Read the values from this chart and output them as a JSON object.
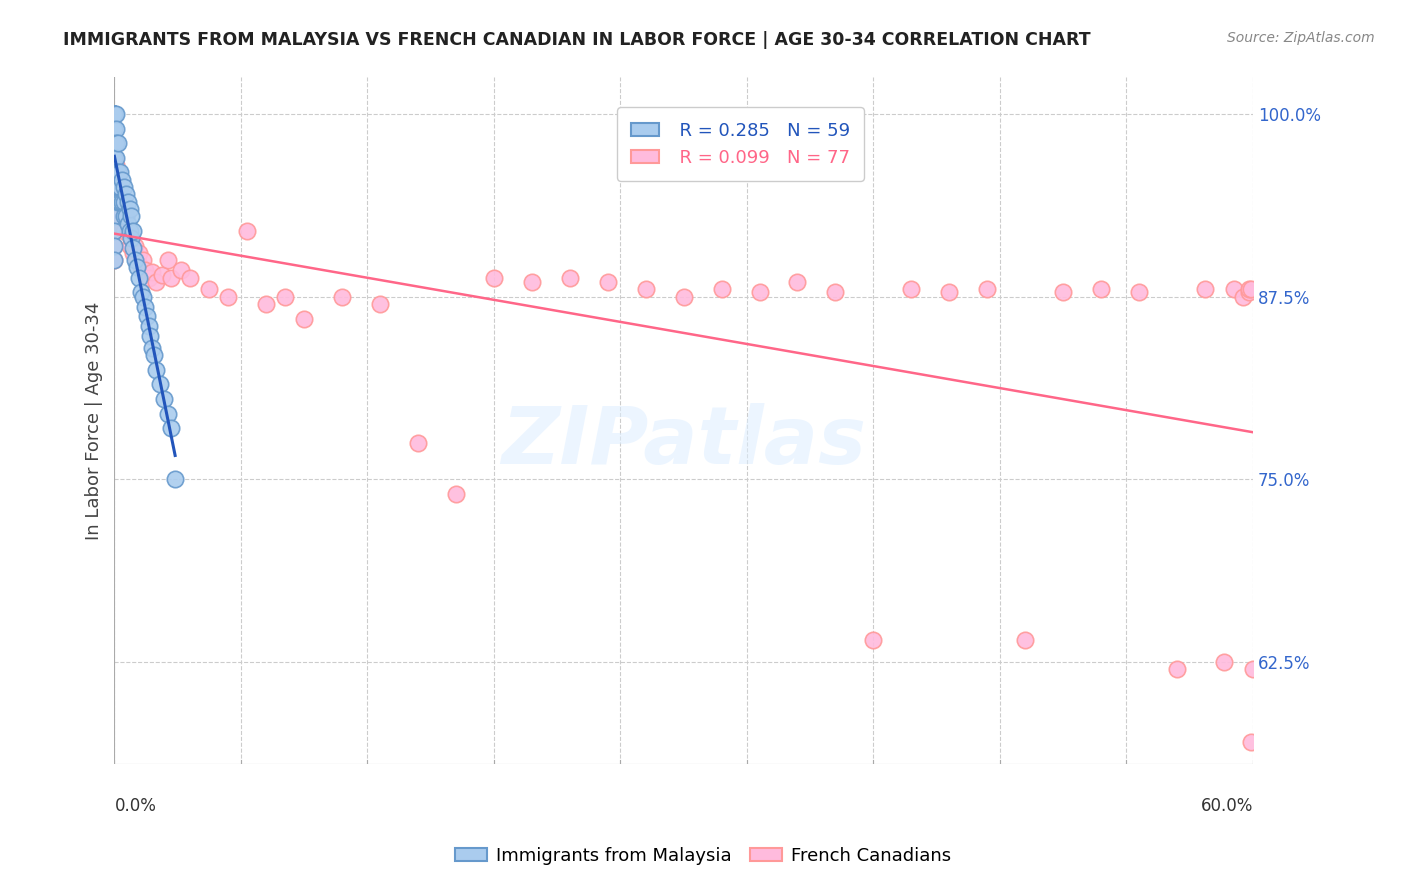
{
  "title": "IMMIGRANTS FROM MALAYSIA VS FRENCH CANADIAN IN LABOR FORCE | AGE 30-34 CORRELATION CHART",
  "source": "Source: ZipAtlas.com",
  "ylabel": "In Labor Force | Age 30-34",
  "right_yticks": [
    1.0,
    0.875,
    0.75,
    0.625
  ],
  "right_yticklabels": [
    "100.0%",
    "87.5%",
    "75.0%",
    "62.5%"
  ],
  "legend_blue_r": "R = 0.285",
  "legend_blue_n": "N = 59",
  "legend_pink_r": "R = 0.099",
  "legend_pink_n": "N = 77",
  "legend_blue_label": "Immigrants from Malaysia",
  "legend_pink_label": "French Canadians",
  "blue_edge_color": "#6699CC",
  "blue_face_color": "#AACCEE",
  "pink_edge_color": "#FF9999",
  "pink_face_color": "#FFBBDD",
  "trend_blue_color": "#2255BB",
  "trend_pink_color": "#FF6688",
  "xlim": [
    0.0,
    0.6
  ],
  "ylim": [
    0.555,
    1.025
  ],
  "watermark": "ZIPatlas",
  "background_color": "#FFFFFF",
  "grid_color": "#CCCCCC",
  "blue_scatter_x": [
    0.0,
    0.0,
    0.0,
    0.0,
    0.0,
    0.0,
    0.0,
    0.0,
    0.0,
    0.0,
    0.0,
    0.0,
    0.0,
    0.0,
    0.0,
    0.001,
    0.001,
    0.001,
    0.001,
    0.001,
    0.002,
    0.002,
    0.002,
    0.002,
    0.003,
    0.003,
    0.003,
    0.004,
    0.004,
    0.005,
    0.005,
    0.005,
    0.006,
    0.006,
    0.007,
    0.007,
    0.008,
    0.008,
    0.009,
    0.009,
    0.01,
    0.01,
    0.011,
    0.012,
    0.013,
    0.014,
    0.015,
    0.016,
    0.017,
    0.018,
    0.019,
    0.02,
    0.021,
    0.022,
    0.024,
    0.026,
    0.028,
    0.03,
    0.032
  ],
  "blue_scatter_y": [
    1.0,
    1.0,
    1.0,
    1.0,
    1.0,
    0.99,
    0.98,
    0.97,
    0.96,
    0.95,
    0.94,
    0.93,
    0.92,
    0.91,
    0.9,
    1.0,
    0.99,
    0.98,
    0.97,
    0.96,
    0.98,
    0.96,
    0.95,
    0.94,
    0.96,
    0.95,
    0.94,
    0.955,
    0.94,
    0.95,
    0.94,
    0.93,
    0.945,
    0.93,
    0.94,
    0.925,
    0.935,
    0.92,
    0.93,
    0.915,
    0.92,
    0.908,
    0.9,
    0.895,
    0.888,
    0.878,
    0.875,
    0.868,
    0.862,
    0.855,
    0.848,
    0.84,
    0.835,
    0.825,
    0.815,
    0.805,
    0.795,
    0.785,
    0.75
  ],
  "pink_scatter_x": [
    0.0,
    0.0,
    0.0,
    0.0,
    0.0,
    0.0,
    0.0,
    0.0,
    0.0,
    0.001,
    0.001,
    0.001,
    0.002,
    0.002,
    0.003,
    0.003,
    0.004,
    0.004,
    0.005,
    0.005,
    0.006,
    0.007,
    0.008,
    0.009,
    0.01,
    0.011,
    0.012,
    0.013,
    0.014,
    0.015,
    0.016,
    0.018,
    0.02,
    0.022,
    0.025,
    0.028,
    0.03,
    0.035,
    0.04,
    0.05,
    0.06,
    0.07,
    0.08,
    0.09,
    0.1,
    0.12,
    0.14,
    0.16,
    0.18,
    0.2,
    0.22,
    0.24,
    0.26,
    0.28,
    0.3,
    0.32,
    0.34,
    0.36,
    0.38,
    0.4,
    0.42,
    0.44,
    0.46,
    0.48,
    0.5,
    0.52,
    0.54,
    0.56,
    0.575,
    0.585,
    0.59,
    0.595,
    0.598,
    0.598,
    0.599,
    0.599,
    0.6
  ],
  "pink_scatter_y": [
    0.98,
    0.97,
    0.96,
    0.95,
    0.94,
    0.93,
    0.92,
    0.91,
    0.9,
    0.965,
    0.95,
    0.935,
    0.955,
    0.94,
    0.945,
    0.93,
    0.94,
    0.925,
    0.935,
    0.92,
    0.93,
    0.92,
    0.91,
    0.915,
    0.905,
    0.91,
    0.9,
    0.905,
    0.895,
    0.9,
    0.893,
    0.888,
    0.892,
    0.885,
    0.89,
    0.9,
    0.888,
    0.893,
    0.888,
    0.88,
    0.875,
    0.92,
    0.87,
    0.875,
    0.86,
    0.875,
    0.87,
    0.775,
    0.74,
    0.888,
    0.885,
    0.888,
    0.885,
    0.88,
    0.875,
    0.88,
    0.878,
    0.885,
    0.878,
    0.64,
    0.88,
    0.878,
    0.88,
    0.64,
    0.878,
    0.88,
    0.878,
    0.62,
    0.88,
    0.625,
    0.88,
    0.875,
    0.878,
    0.88,
    0.88,
    0.57,
    0.62
  ]
}
